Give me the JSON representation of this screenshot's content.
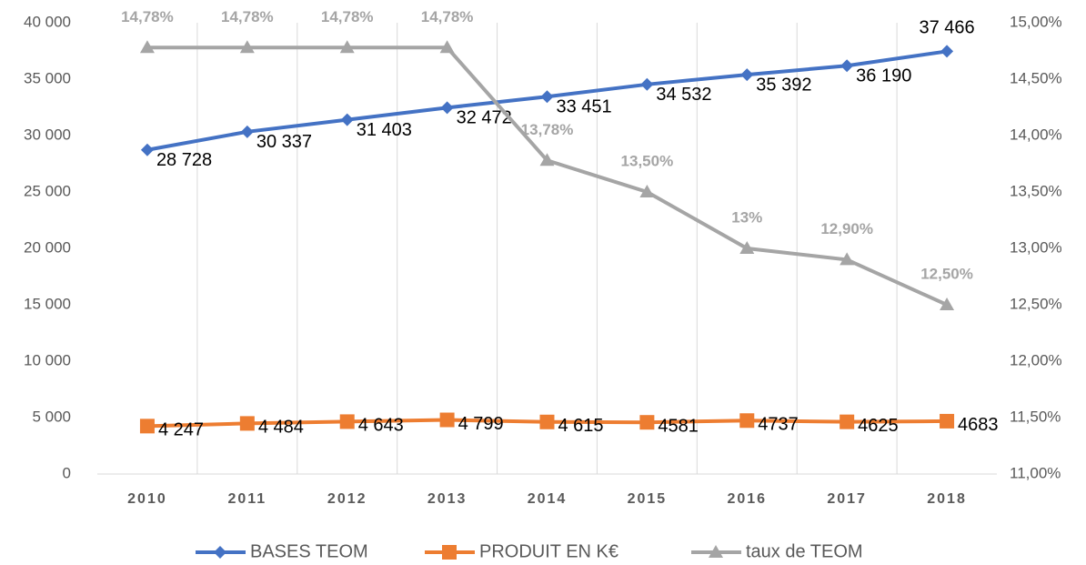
{
  "chart_data": {
    "type": "line",
    "categories": [
      "2010",
      "2011",
      "2012",
      "2013",
      "2014",
      "2015",
      "2016",
      "2017",
      "2018"
    ],
    "series": [
      {
        "name": "BASES TEOM",
        "color": "#4472c4",
        "marker": "diamond",
        "values": [
          28728,
          30337,
          31403,
          32472,
          33451,
          34532,
          35392,
          36190,
          37466
        ],
        "value_labels": [
          "28 728",
          "30 337",
          "31 403",
          "32 472",
          "33 451",
          "34 532",
          "35 392",
          "36 190",
          "37 466"
        ]
      },
      {
        "name": "PRODUIT EN K€",
        "color": "#ed7d31",
        "marker": "square",
        "values": [
          4247,
          4484,
          4643,
          4799,
          4615,
          4581,
          4737,
          4625,
          4683
        ],
        "value_labels": [
          "4 247",
          "4 484",
          "4 643",
          "4 799",
          "4 615",
          "4581",
          "4737",
          "4625",
          "4683"
        ]
      },
      {
        "name": "taux de TEOM",
        "color": "#a5a5a5",
        "marker": "triangle",
        "axis": "y2",
        "values": [
          14.78,
          14.78,
          14.78,
          14.78,
          13.78,
          13.5,
          13,
          12.9,
          12.5
        ],
        "value_labels": [
          "14,78%",
          "14,78%",
          "14,78%",
          "14,78%",
          "13,78%",
          "13,50%",
          "13%",
          "12,90%",
          "12,50%"
        ]
      }
    ],
    "ylim": [
      0,
      40000
    ],
    "yticks": [
      0,
      {
        "value": 5000,
        "label": "5 000"
      },
      {
        "value": 10000,
        "label": "10 000"
      },
      {
        "value": 15000,
        "label": "15 000"
      },
      {
        "value": 20000,
        "label": "20 000"
      },
      {
        "value": 25000,
        "label": "25 000"
      },
      {
        "value": 30000,
        "label": "30 000"
      },
      {
        "value": 35000,
        "label": "35 000"
      },
      {
        "value": 40000,
        "label": "40 000"
      }
    ],
    "y2lim": [
      11,
      15
    ],
    "y2ticks": [
      {
        "value": 11,
        "label": "11,00%"
      },
      {
        "value": 11.5,
        "label": "11,50%"
      },
      {
        "value": 12,
        "label": "12,00%"
      },
      {
        "value": 12.5,
        "label": "12,50%"
      },
      {
        "value": 13,
        "label": "13,00%"
      },
      {
        "value": 13.5,
        "label": "13,50%"
      },
      {
        "value": 14,
        "label": "14,00%"
      },
      {
        "value": 14.5,
        "label": "14,50%"
      },
      {
        "value": 15,
        "label": "15,00%"
      }
    ],
    "legend": "bottom"
  }
}
